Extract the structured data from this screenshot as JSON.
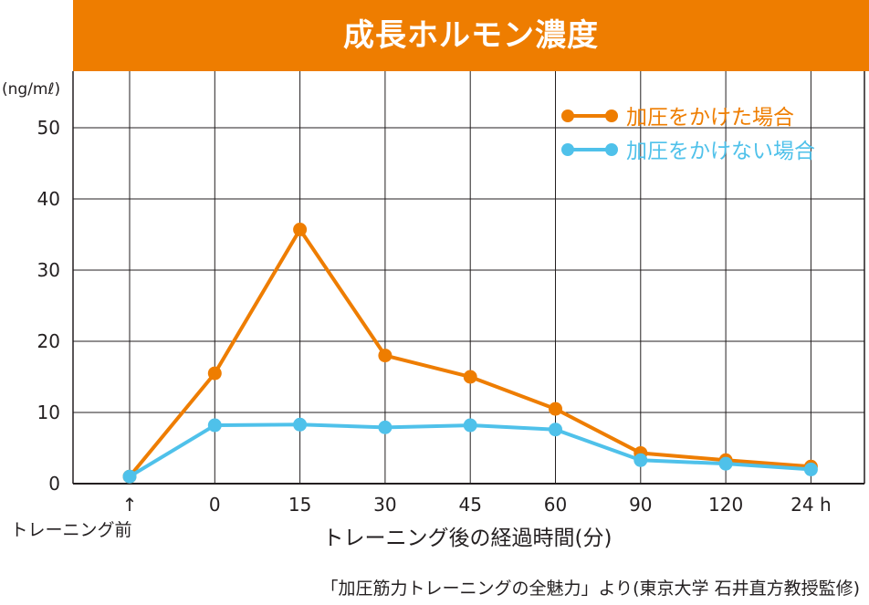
{
  "chart_data": {
    "type": "line",
    "title": "成長ホルモン濃度",
    "unit": "(ng/mℓ)",
    "xlabel": "トレーニング後の経過時間(分)",
    "categories": [
      "↑",
      "0",
      "15",
      "30",
      "45",
      "60",
      "90",
      "120",
      "24 h"
    ],
    "pre_training_label": "トレーニング前",
    "ylim": [
      0,
      58
    ],
    "yticks": [
      0,
      10,
      20,
      30,
      40,
      50
    ],
    "grid": true,
    "legend_position": "top-right",
    "series": [
      {
        "name": "加圧をかけた場合",
        "color": "#ee7d00",
        "values": [
          1.0,
          15.5,
          35.7,
          18.0,
          15.0,
          10.5,
          4.3,
          3.3,
          2.4
        ]
      },
      {
        "name": "加圧をかけない場合",
        "color": "#4fc1ea",
        "values": [
          1.0,
          8.2,
          8.3,
          7.9,
          8.2,
          7.6,
          3.3,
          2.8,
          2.0
        ]
      }
    ]
  },
  "source": "「加圧筋力トレーニングの全魅力」より(東京大学 石井直方教授監修)"
}
